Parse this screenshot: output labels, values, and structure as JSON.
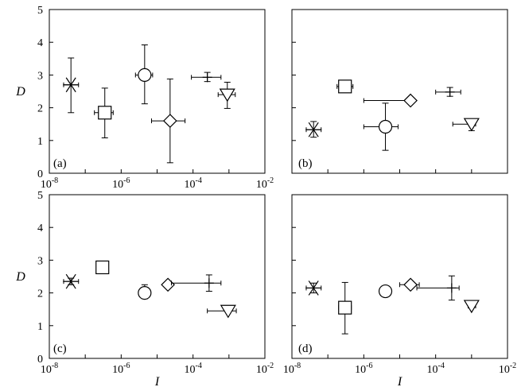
{
  "chart_data": [
    {
      "panel": "(a)",
      "type": "scatter",
      "xscale": "log",
      "xlim": [
        1e-08,
        0.01
      ],
      "ylim": [
        0,
        5
      ],
      "xticks": [
        "10-8",
        "10-6",
        "10-4",
        "10-2"
      ],
      "yticks": [
        "0",
        "1",
        "2",
        "3",
        "4",
        "5"
      ],
      "xlabel": "",
      "ylabel": "D",
      "points": [
        {
          "marker": "asterisk",
          "x": 4e-08,
          "y": 2.7,
          "x_err": [
            2.5e-08,
            6.5e-08
          ],
          "y_err": [
            1.85,
            3.52
          ]
        },
        {
          "marker": "square",
          "x": 3.5e-07,
          "y": 1.85,
          "x_err": [
            1.8e-07,
            6e-07
          ],
          "y_err": [
            1.08,
            2.6
          ]
        },
        {
          "marker": "circle",
          "x": 4.5e-06,
          "y": 3.0,
          "x_err": [
            2.5e-06,
            7.5e-06
          ],
          "y_err": [
            2.12,
            3.92
          ]
        },
        {
          "marker": "diamond",
          "x": 2.3e-05,
          "y": 1.6,
          "x_err": [
            7e-06,
            6e-05
          ],
          "y_err": [
            0.32,
            2.88
          ]
        },
        {
          "marker": "plus",
          "x": 0.00025,
          "y": 2.93,
          "x_err": [
            9e-05,
            0.0006
          ],
          "y_err": [
            2.8,
            3.08
          ]
        },
        {
          "marker": "triangle-down",
          "x": 0.0009,
          "y": 2.4,
          "x_err": [
            0.0005,
            0.0015
          ],
          "y_err": [
            1.98,
            2.78
          ]
        }
      ]
    },
    {
      "panel": "(b)",
      "type": "scatter",
      "xscale": "log",
      "xlim": [
        1e-08,
        0.01
      ],
      "ylim": [
        0,
        5
      ],
      "xticks": [],
      "yticks": [],
      "xlabel": "",
      "ylabel": "",
      "points": [
        {
          "marker": "asterisk",
          "x": 4e-08,
          "y": 1.33,
          "x_err": [
            2.5e-08,
            6.5e-08
          ],
          "y_err": [
            1.1,
            1.58
          ]
        },
        {
          "marker": "square",
          "x": 3e-07,
          "y": 2.65,
          "x_err": [
            1.8e-07,
            5e-07
          ],
          "y_err": [
            2.58,
            2.72
          ]
        },
        {
          "marker": "circle",
          "x": 4e-06,
          "y": 1.42,
          "x_err": [
            1e-06,
            9e-06
          ],
          "y_err": [
            0.7,
            2.14
          ]
        },
        {
          "marker": "diamond",
          "x": 2e-05,
          "y": 2.22,
          "x_err": [
            1e-06,
            2.5e-05
          ],
          "y_err": [
            2.22,
            2.22
          ]
        },
        {
          "marker": "plus",
          "x": 0.00025,
          "y": 2.48,
          "x_err": [
            0.0001,
            0.0005
          ],
          "y_err": [
            2.35,
            2.62
          ]
        },
        {
          "marker": "triangle-down",
          "x": 0.001,
          "y": 1.5,
          "x_err": [
            0.0003,
            0.0013
          ],
          "y_err": [
            1.3,
            1.5
          ]
        }
      ]
    },
    {
      "panel": "(c)",
      "type": "scatter",
      "xscale": "log",
      "xlim": [
        1e-08,
        0.01
      ],
      "ylim": [
        0,
        5
      ],
      "xticks": [
        "10-8",
        "10-6",
        "10-4",
        "10-2"
      ],
      "yticks": [
        "0",
        "1",
        "2",
        "3",
        "4",
        "5"
      ],
      "xlabel": "I",
      "ylabel": "D",
      "points": [
        {
          "marker": "asterisk",
          "x": 4e-08,
          "y": 2.35,
          "x_err": [
            2.5e-08,
            6.5e-08
          ],
          "y_err": [
            2.25,
            2.45
          ]
        },
        {
          "marker": "square",
          "x": 3e-07,
          "y": 2.78,
          "x_err": [
            3e-07,
            3e-07
          ],
          "y_err": [
            2.78,
            2.78
          ]
        },
        {
          "marker": "circle",
          "x": 4.5e-06,
          "y": 2.0,
          "x_err": [
            3.5e-06,
            5.5e-06
          ],
          "y_err": [
            1.82,
            2.25
          ]
        },
        {
          "marker": "diamond",
          "x": 2e-05,
          "y": 2.25,
          "x_err": [
            2e-05,
            2e-05
          ],
          "y_err": [
            2.25,
            2.25
          ]
        },
        {
          "marker": "plus",
          "x": 0.00028,
          "y": 2.3,
          "x_err": [
            2.5e-05,
            0.0006
          ],
          "y_err": [
            2.05,
            2.55
          ]
        },
        {
          "marker": "triangle-down",
          "x": 0.00095,
          "y": 1.45,
          "x_err": [
            0.00025,
            0.0016
          ],
          "y_err": [
            1.45,
            1.45
          ]
        }
      ]
    },
    {
      "panel": "(d)",
      "type": "scatter",
      "xscale": "log",
      "xlim": [
        1e-08,
        0.01
      ],
      "ylim": [
        0,
        5
      ],
      "xticks": [
        "10-8",
        "10-6",
        "10-4",
        "10-2"
      ],
      "yticks": [],
      "xlabel": "I",
      "ylabel": "",
      "points": [
        {
          "marker": "asterisk",
          "x": 4e-08,
          "y": 2.15,
          "x_err": [
            2.5e-08,
            6.5e-08
          ],
          "y_err": [
            2.0,
            2.3
          ]
        },
        {
          "marker": "square",
          "x": 3e-07,
          "y": 1.55,
          "x_err": [
            2e-07,
            4.5e-07
          ],
          "y_err": [
            0.75,
            2.32
          ]
        },
        {
          "marker": "circle",
          "x": 4e-06,
          "y": 2.05,
          "x_err": [
            2.8e-06,
            5.2e-06
          ],
          "y_err": [
            2.05,
            2.05
          ]
        },
        {
          "marker": "diamond",
          "x": 2e-05,
          "y": 2.25,
          "x_err": [
            1e-05,
            3.5e-05
          ],
          "y_err": [
            2.25,
            2.25
          ]
        },
        {
          "marker": "plus",
          "x": 0.00028,
          "y": 2.15,
          "x_err": [
            3e-05,
            0.00045
          ],
          "y_err": [
            1.78,
            2.52
          ]
        },
        {
          "marker": "triangle-down",
          "x": 0.001,
          "y": 1.6,
          "x_err": [
            0.0008,
            0.0013
          ],
          "y_err": [
            1.6,
            1.6
          ]
        }
      ]
    }
  ]
}
